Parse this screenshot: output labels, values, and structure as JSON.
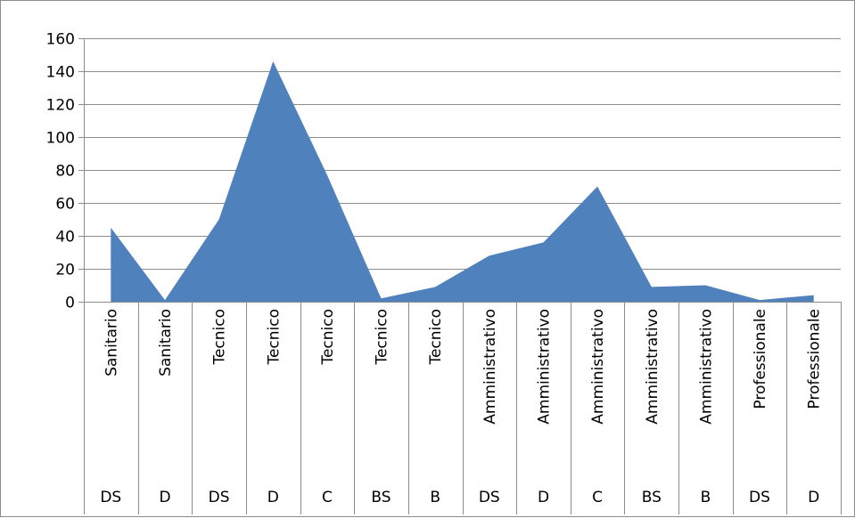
{
  "chart_data": {
    "type": "area",
    "title": "",
    "xlabel": "",
    "ylabel": "",
    "ylim": [
      0,
      160
    ],
    "y_ticks": [
      0,
      20,
      40,
      60,
      80,
      100,
      120,
      140,
      160
    ],
    "grid": true,
    "legend": "none",
    "colors": {
      "area": "#4f81bd",
      "grid": "#8c8c8c",
      "axis": "#8c8c8c"
    },
    "categories": [
      {
        "group": "Sanitario",
        "level": "DS"
      },
      {
        "group": "Sanitario",
        "level": "D"
      },
      {
        "group": "Tecnico",
        "level": "DS"
      },
      {
        "group": "Tecnico",
        "level": "D"
      },
      {
        "group": "Tecnico",
        "level": "C"
      },
      {
        "group": "Tecnico",
        "level": "BS"
      },
      {
        "group": "Tecnico",
        "level": "B"
      },
      {
        "group": "Amministrativo",
        "level": "DS"
      },
      {
        "group": "Amministrativo",
        "level": "D"
      },
      {
        "group": "Amministrativo",
        "level": "C"
      },
      {
        "group": "Amministrativo",
        "level": "BS"
      },
      {
        "group": "Amministrativo",
        "level": "B"
      },
      {
        "group": "Professionale",
        "level": "DS"
      },
      {
        "group": "Professionale",
        "level": "D"
      }
    ],
    "series": [
      {
        "values": [
          45,
          1,
          50,
          146,
          77,
          2,
          9,
          28,
          36,
          70,
          9,
          10,
          1,
          4
        ]
      }
    ]
  }
}
